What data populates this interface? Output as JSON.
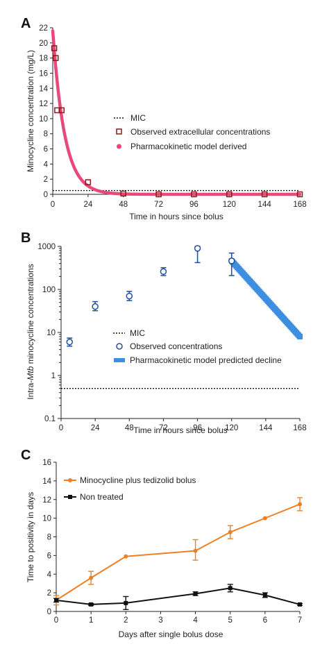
{
  "colors": {
    "pink": "#e8497a",
    "darkred": "#8b1a1a",
    "blue": "#1f4e9c",
    "lightblue": "#3d8fe0",
    "orange": "#f07f22",
    "black": "#111111"
  },
  "chart_data": [
    {
      "panel": "A",
      "type": "line",
      "xlabel": "Time in hours since bolus",
      "ylabel": "Minocycline concentration (mg/L)",
      "xlim": [
        0,
        168
      ],
      "ylim": [
        0,
        22
      ],
      "xticks": [
        "0",
        "24",
        "48",
        "72",
        "96",
        "120",
        "144",
        "168"
      ],
      "yticks": [
        "0",
        "2",
        "4",
        "6",
        "8",
        "10",
        "12",
        "14",
        "16",
        "18",
        "20",
        "22"
      ],
      "legend": [
        "MIC",
        "Observed extracellular concentrations",
        "Pharmacokinetic model  derived"
      ],
      "mic": 0.5,
      "observed": {
        "x": [
          1,
          2,
          3,
          6,
          24,
          48,
          72,
          96,
          120,
          144,
          168
        ],
        "y": [
          19.3,
          18.0,
          11.1,
          11.1,
          1.6,
          0.1,
          0,
          0,
          0,
          0,
          0
        ]
      },
      "model": {
        "y0": 21.6,
        "half_life_hours": 5.6
      }
    },
    {
      "panel": "B",
      "type": "scatter",
      "xlabel": "Time in hours since bolus",
      "ylabel": "Intra-Mtb minocycline concentrations",
      "ylabel_parts": [
        "Intra-",
        "Mtb",
        " minocycline concentrations"
      ],
      "xlim": [
        0,
        168
      ],
      "ylim": [
        0.1,
        1000
      ],
      "yscale": "log",
      "xticks": [
        "0",
        "24",
        "48",
        "72",
        "96",
        "120",
        "144",
        "168"
      ],
      "yticks": [
        "0.1",
        "1",
        "10",
        "100",
        "1000"
      ],
      "legend": [
        "MIC",
        "Observed concentrations",
        "Pharmacokinetic model predicted decline"
      ],
      "mic": 0.5,
      "observed": {
        "x": [
          6,
          24,
          48,
          72,
          96,
          120
        ],
        "y": [
          6,
          40,
          70,
          260,
          900,
          460
        ],
        "err_low": [
          4.8,
          32,
          55,
          210,
          420,
          210
        ],
        "err_high": [
          7.4,
          52,
          90,
          320,
          1000,
          700
        ]
      },
      "model": {
        "x": [
          120,
          168
        ],
        "y": [
          460,
          8
        ]
      }
    },
    {
      "panel": "C",
      "type": "line",
      "xlabel": "Days after single bolus dose",
      "ylabel": "Time to positivity in days",
      "xlim": [
        0,
        7
      ],
      "ylim": [
        0,
        16
      ],
      "xticks": [
        "0",
        "1",
        "2",
        "3",
        "4",
        "5",
        "6",
        "7"
      ],
      "yticks": [
        "0",
        "2",
        "4",
        "6",
        "8",
        "10",
        "12",
        "14",
        "16"
      ],
      "series": [
        {
          "name": "Minocycline plus tedizolid bolus",
          "x": [
            0,
            1,
            2,
            4,
            5,
            6,
            7
          ],
          "y": [
            1.2,
            3.6,
            5.9,
            6.5,
            8.5,
            10.0,
            11.5
          ],
          "err_low": [
            0.7,
            2.9,
            5.9,
            5.5,
            7.8,
            10.0,
            10.8
          ],
          "err_high": [
            1.7,
            4.3,
            5.9,
            7.7,
            9.2,
            10.0,
            12.2
          ]
        },
        {
          "name": "Non treated",
          "x": [
            0,
            1,
            2,
            4,
            5,
            6,
            7
          ],
          "y": [
            1.2,
            0.75,
            0.9,
            1.9,
            2.5,
            1.75,
            0.75
          ],
          "err_low": [
            1.0,
            0.65,
            0.2,
            1.7,
            2.1,
            1.5,
            0.65
          ],
          "err_high": [
            1.4,
            0.85,
            1.6,
            2.1,
            2.9,
            2.0,
            0.85
          ]
        }
      ]
    }
  ]
}
